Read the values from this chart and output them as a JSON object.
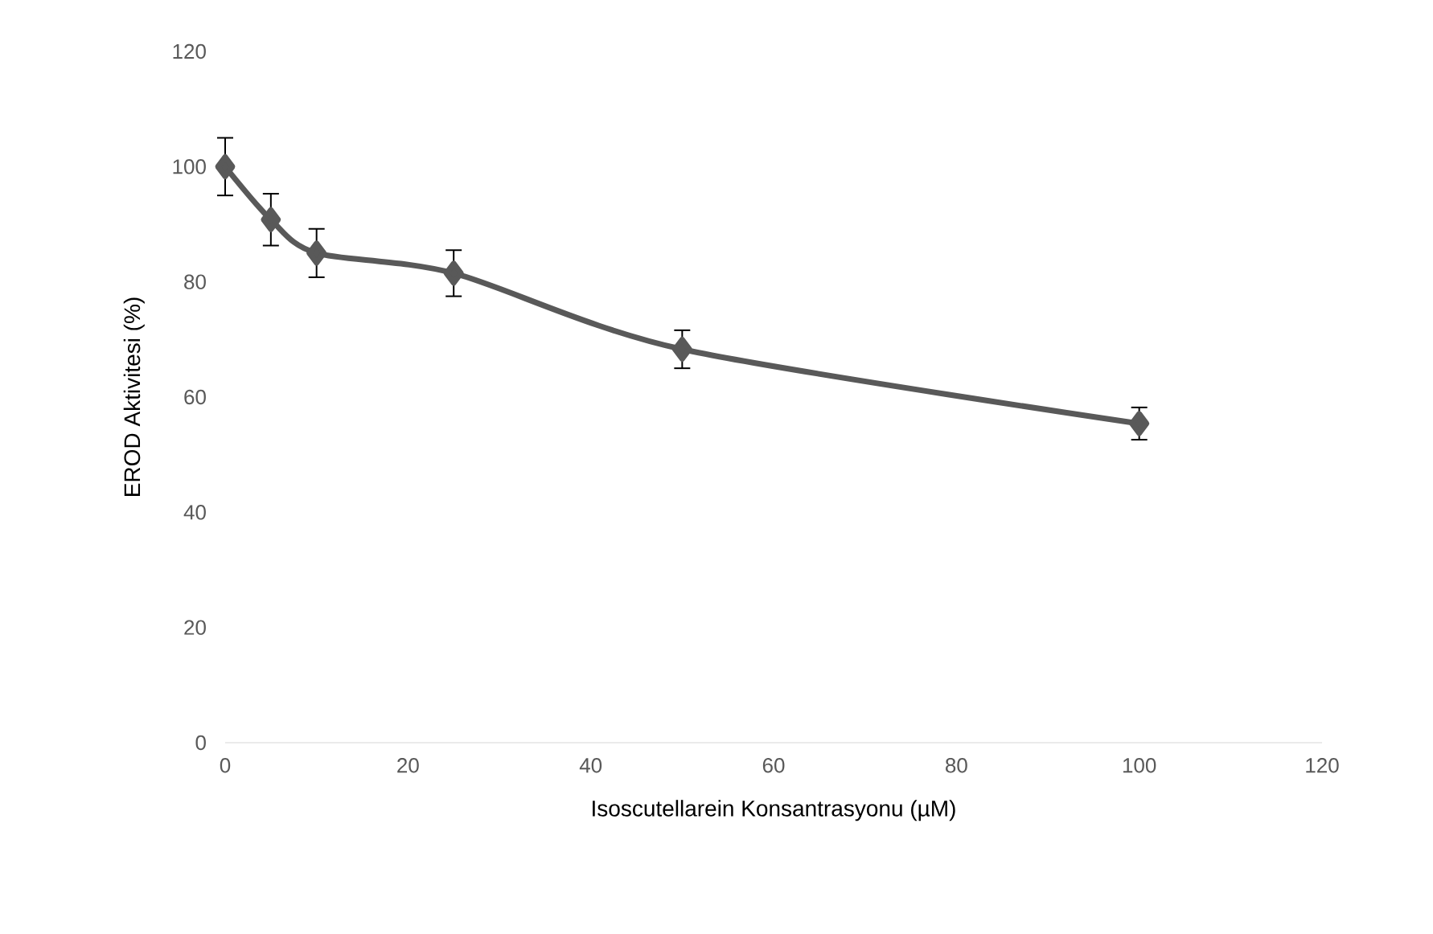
{
  "chart_data": {
    "type": "line",
    "xlabel": "Isoscutellarein Konsantrasyonu (µM)",
    "ylabel": "EROD Aktivitesi (%)",
    "x": [
      0,
      5,
      10,
      25,
      50,
      100
    ],
    "series": [
      {
        "color": "#595959",
        "values": [
          100,
          90.8,
          85,
          81.5,
          68.3,
          55.4
        ],
        "errors": [
          5,
          4.5,
          4.2,
          4,
          3.3,
          2.8
        ]
      }
    ],
    "xlim": [
      0,
      120
    ],
    "xticks": [
      0,
      20,
      40,
      60,
      80,
      100,
      120
    ],
    "ylim": [
      0,
      120
    ],
    "yticks": [
      0,
      20,
      40,
      60,
      80,
      100,
      120
    ],
    "marker": "diamond",
    "line_style": "solid",
    "grid": false
  }
}
